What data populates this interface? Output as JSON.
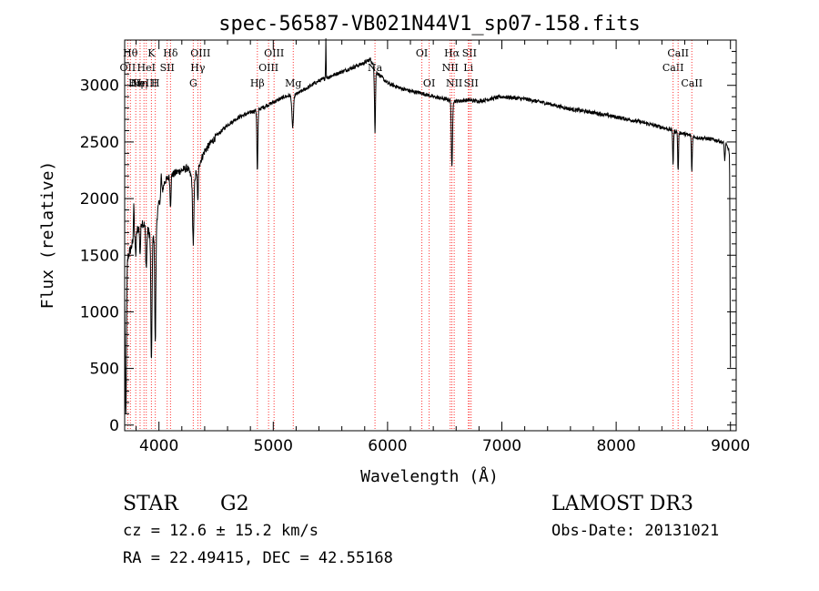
{
  "chart_data": {
    "type": "line",
    "title": "spec-56587-VB021N44V1_sp07-158.fits",
    "xlabel": "Wavelength (Å)",
    "ylabel": "Flux (relative)",
    "xlim": [
      3700,
      9050
    ],
    "ylim": [
      -50,
      3400
    ],
    "x_ticks": [
      4000,
      5000,
      6000,
      7000,
      8000,
      9000
    ],
    "y_ticks": [
      0,
      500,
      1000,
      1500,
      2000,
      2500,
      3000
    ],
    "grid": false,
    "line_color": "#000000",
    "line_marker_color": "#ff3333",
    "continuum": [
      [
        3700,
        1400
      ],
      [
        3750,
        1550
      ],
      [
        3800,
        1700
      ],
      [
        3850,
        1800
      ],
      [
        3900,
        1720
      ],
      [
        3950,
        1650
      ],
      [
        4000,
        1950
      ],
      [
        4050,
        2150
      ],
      [
        4100,
        2200
      ],
      [
        4150,
        2230
      ],
      [
        4200,
        2250
      ],
      [
        4250,
        2270
      ],
      [
        4300,
        2150
      ],
      [
        4350,
        2300
      ],
      [
        4400,
        2420
      ],
      [
        4500,
        2550
      ],
      [
        4600,
        2650
      ],
      [
        4700,
        2720
      ],
      [
        4800,
        2760
      ],
      [
        4900,
        2800
      ],
      [
        5000,
        2850
      ],
      [
        5100,
        2900
      ],
      [
        5200,
        2920
      ],
      [
        5300,
        2980
      ],
      [
        5400,
        3040
      ],
      [
        5500,
        3080
      ],
      [
        5600,
        3120
      ],
      [
        5700,
        3160
      ],
      [
        5800,
        3200
      ],
      [
        5850,
        3230
      ],
      [
        5900,
        3120
      ],
      [
        6000,
        3020
      ],
      [
        6100,
        2980
      ],
      [
        6200,
        2950
      ],
      [
        6300,
        2930
      ],
      [
        6400,
        2900
      ],
      [
        6500,
        2880
      ],
      [
        6600,
        2860
      ],
      [
        6700,
        2870
      ],
      [
        6800,
        2860
      ],
      [
        6900,
        2880
      ],
      [
        7000,
        2900
      ],
      [
        7100,
        2890
      ],
      [
        7200,
        2880
      ],
      [
        7400,
        2840
      ],
      [
        7600,
        2790
      ],
      [
        7800,
        2760
      ],
      [
        8000,
        2720
      ],
      [
        8200,
        2680
      ],
      [
        8400,
        2630
      ],
      [
        8500,
        2600
      ],
      [
        8600,
        2570
      ],
      [
        8700,
        2540
      ],
      [
        8800,
        2530
      ],
      [
        8900,
        2510
      ],
      [
        8960,
        2480
      ],
      [
        9000,
        2400
      ]
    ],
    "absorption_features": [
      {
        "x": 3710,
        "depth": 1350,
        "width": 8
      },
      {
        "x": 3797,
        "depth": 180,
        "width": 6
      },
      {
        "x": 3835,
        "depth": 250,
        "width": 6
      },
      {
        "x": 3889,
        "depth": 350,
        "width": 7
      },
      {
        "x": 3934,
        "depth": 1150,
        "width": 7
      },
      {
        "x": 3968,
        "depth": 1050,
        "width": 7
      },
      {
        "x": 4101,
        "depth": 250,
        "width": 6
      },
      {
        "x": 4300,
        "depth": 550,
        "width": 8
      },
      {
        "x": 4340,
        "depth": 300,
        "width": 6
      },
      {
        "x": 4861,
        "depth": 550,
        "width": 6
      },
      {
        "x": 5170,
        "depth": 280,
        "width": 10
      },
      {
        "x": 5890,
        "depth": 550,
        "width": 6
      },
      {
        "x": 6563,
        "depth": 600,
        "width": 7
      },
      {
        "x": 8498,
        "depth": 300,
        "width": 5
      },
      {
        "x": 8542,
        "depth": 350,
        "width": 5
      },
      {
        "x": 8662,
        "depth": 320,
        "width": 5
      },
      {
        "x": 8950,
        "depth": 150,
        "width": 5
      },
      {
        "x": 9000,
        "depth": 1900,
        "width": 5
      }
    ],
    "emission_features": [
      {
        "x": 5460,
        "height": 350,
        "width": 3
      },
      {
        "x": 3780,
        "height": 350,
        "width": 4
      },
      {
        "x": 4020,
        "height": 180,
        "width": 5
      }
    ],
    "line_markers": [
      {
        "x": 3727,
        "label": "OII",
        "row": 2
      },
      {
        "x": 3750,
        "label": "Hθ",
        "row": 1
      },
      {
        "x": 3797,
        "label": "Hη",
        "row": 3
      },
      {
        "x": 3835,
        "label": "Hη",
        "row": 3
      },
      {
        "x": 3869,
        "label": "NeIII",
        "row": 3
      },
      {
        "x": 3889,
        "label": "HeI",
        "row": 2
      },
      {
        "x": 3934,
        "label": "K",
        "row": 1
      },
      {
        "x": 3968,
        "label": "H",
        "row": 3
      },
      {
        "x": 4072,
        "label": "SII",
        "row": 2
      },
      {
        "x": 4101,
        "label": "Hδ",
        "row": 1
      },
      {
        "x": 4300,
        "label": "G",
        "row": 3
      },
      {
        "x": 4340,
        "label": "Hγ",
        "row": 2
      },
      {
        "x": 4363,
        "label": "OIII",
        "row": 1
      },
      {
        "x": 4861,
        "label": "Hβ",
        "row": 3
      },
      {
        "x": 4959,
        "label": "OIII",
        "row": 2
      },
      {
        "x": 5007,
        "label": "OIII",
        "row": 1
      },
      {
        "x": 5175,
        "label": "Mg",
        "row": 3
      },
      {
        "x": 5890,
        "label": "Na",
        "row": 2
      },
      {
        "x": 6300,
        "label": "OI",
        "row": 1
      },
      {
        "x": 6364,
        "label": "OI",
        "row": 3
      },
      {
        "x": 6548,
        "label": "NII",
        "row": 2
      },
      {
        "x": 6563,
        "label": "Hα",
        "row": 1
      },
      {
        "x": 6583,
        "label": "NII",
        "row": 3
      },
      {
        "x": 6707,
        "label": "Li",
        "row": 2
      },
      {
        "x": 6716,
        "label": "SII",
        "row": 1
      },
      {
        "x": 6731,
        "label": "SII",
        "row": 3
      },
      {
        "x": 8498,
        "label": "CaII",
        "row": 2
      },
      {
        "x": 8542,
        "label": "CaII",
        "row": 1
      },
      {
        "x": 8662,
        "label": "CaII",
        "row": 3
      }
    ]
  },
  "info": {
    "class_label": "STAR",
    "subclass_label": "G2",
    "survey": "LAMOST DR3",
    "cz_line": "cz = 12.6 ± 15.2 km/s",
    "obs_date": "Obs-Date: 20131021",
    "coords": "RA =  22.49415, DEC =  42.55168"
  }
}
